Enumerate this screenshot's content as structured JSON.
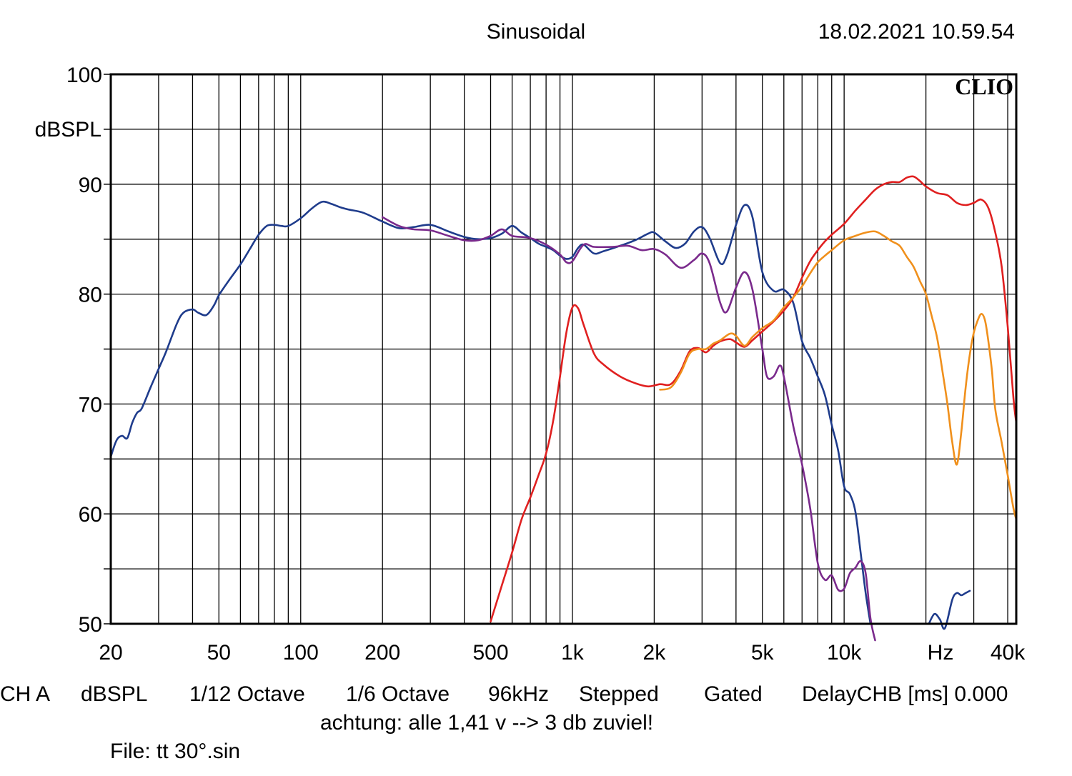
{
  "header": {
    "title": "Sinusoidal",
    "timestamp": "18.02.2021 10.59.54"
  },
  "footer": {
    "channel": "CH A",
    "unit": "dBSPL",
    "smoothing": "1/12 Octave",
    "resolution": "1/6 Octave",
    "sample_rate": "96kHz",
    "mode": "Stepped",
    "window": "Gated",
    "delay": "DelayCHB [ms] 0.000",
    "note": "achtung: alle 1,41 v --> 3 db zuviel!",
    "file": "File: tt 30°.sin"
  },
  "chart_data": {
    "type": "line",
    "brand": "CLIO",
    "ylabel": "dBSPL",
    "x_unit_label": "Hz",
    "x_scale": "log",
    "xlim": [
      20,
      43000
    ],
    "ylim": [
      50,
      100
    ],
    "grid": true,
    "y_ticks": [
      100,
      90,
      80,
      70,
      60,
      50
    ],
    "x_tick_labels": [
      {
        "value": 20,
        "label": "20"
      },
      {
        "value": 50,
        "label": "50"
      },
      {
        "value": 100,
        "label": "100"
      },
      {
        "value": 200,
        "label": "200"
      },
      {
        "value": 500,
        "label": "500"
      },
      {
        "value": 1000,
        "label": "1k"
      },
      {
        "value": 2000,
        "label": "2k"
      },
      {
        "value": 5000,
        "label": "5k"
      },
      {
        "value": 10000,
        "label": "10k"
      },
      {
        "value": 40000,
        "label": "40k"
      }
    ],
    "series": [
      {
        "color": "#1f3c8c",
        "points": [
          [
            20,
            65.2
          ],
          [
            21,
            66.7
          ],
          [
            22,
            67.1
          ],
          [
            23,
            66.9
          ],
          [
            24,
            68.3
          ],
          [
            25,
            69.2
          ],
          [
            26,
            69.6
          ],
          [
            28,
            71.5
          ],
          [
            30,
            73.2
          ],
          [
            32,
            74.8
          ],
          [
            35,
            77.3
          ],
          [
            37,
            78.3
          ],
          [
            40,
            78.6
          ],
          [
            42,
            78.3
          ],
          [
            45,
            78.1
          ],
          [
            48,
            79.0
          ],
          [
            50,
            79.9
          ],
          [
            55,
            81.4
          ],
          [
            60,
            82.7
          ],
          [
            65,
            84.1
          ],
          [
            70,
            85.4
          ],
          [
            75,
            86.2
          ],
          [
            80,
            86.3
          ],
          [
            85,
            86.2
          ],
          [
            90,
            86.2
          ],
          [
            100,
            86.9
          ],
          [
            110,
            87.8
          ],
          [
            120,
            88.4
          ],
          [
            130,
            88.2
          ],
          [
            140,
            87.9
          ],
          [
            150,
            87.7
          ],
          [
            170,
            87.4
          ],
          [
            200,
            86.6
          ],
          [
            230,
            86.0
          ],
          [
            260,
            86.1
          ],
          [
            300,
            86.3
          ],
          [
            350,
            85.7
          ],
          [
            400,
            85.2
          ],
          [
            450,
            85.0
          ],
          [
            500,
            85.1
          ],
          [
            550,
            85.5
          ],
          [
            600,
            86.2
          ],
          [
            650,
            85.6
          ],
          [
            700,
            85.1
          ],
          [
            750,
            84.6
          ],
          [
            800,
            84.3
          ],
          [
            850,
            84.0
          ],
          [
            900,
            83.5
          ],
          [
            950,
            83.2
          ],
          [
            1000,
            83.4
          ],
          [
            1050,
            84.2
          ],
          [
            1100,
            84.5
          ],
          [
            1200,
            83.7
          ],
          [
            1300,
            83.9
          ],
          [
            1500,
            84.4
          ],
          [
            1700,
            84.9
          ],
          [
            1900,
            85.5
          ],
          [
            2000,
            85.6
          ],
          [
            2200,
            84.8
          ],
          [
            2400,
            84.2
          ],
          [
            2600,
            84.6
          ],
          [
            2800,
            85.7
          ],
          [
            3000,
            86.1
          ],
          [
            3200,
            85.1
          ],
          [
            3500,
            82.8
          ],
          [
            3700,
            83.5
          ],
          [
            4000,
            86.3
          ],
          [
            4300,
            88.1
          ],
          [
            4600,
            87.0
          ],
          [
            5000,
            82.0
          ],
          [
            5500,
            80.3
          ],
          [
            6000,
            80.4
          ],
          [
            6500,
            79.2
          ],
          [
            7000,
            75.7
          ],
          [
            7500,
            74.2
          ],
          [
            8000,
            72.5
          ],
          [
            8500,
            70.8
          ],
          [
            9000,
            68.1
          ],
          [
            9500,
            65.8
          ],
          [
            10000,
            62.5
          ],
          [
            10500,
            61.8
          ],
          [
            11000,
            60.2
          ],
          [
            11500,
            56.5
          ],
          [
            12000,
            52.8
          ],
          [
            12500,
            50.0
          ]
        ]
      },
      {
        "color": "#1f3c8c",
        "points": [
          [
            20500,
            50.0
          ],
          [
            21500,
            50.9
          ],
          [
            22500,
            50.4
          ],
          [
            23500,
            49.6
          ],
          [
            25000,
            52.2
          ],
          [
            26000,
            52.8
          ],
          [
            27000,
            52.6
          ],
          [
            28000,
            52.8
          ],
          [
            29000,
            53.0
          ]
        ]
      },
      {
        "color": "#7a2a8c",
        "points": [
          [
            200,
            87.0
          ],
          [
            230,
            86.2
          ],
          [
            260,
            85.9
          ],
          [
            300,
            85.8
          ],
          [
            350,
            85.3
          ],
          [
            400,
            84.9
          ],
          [
            450,
            84.9
          ],
          [
            500,
            85.3
          ],
          [
            550,
            85.9
          ],
          [
            600,
            85.3
          ],
          [
            700,
            85.1
          ],
          [
            800,
            84.5
          ],
          [
            900,
            83.6
          ],
          [
            950,
            82.9
          ],
          [
            1000,
            83.0
          ],
          [
            1100,
            84.5
          ],
          [
            1200,
            84.3
          ],
          [
            1400,
            84.3
          ],
          [
            1600,
            84.4
          ],
          [
            1800,
            84.0
          ],
          [
            2000,
            84.1
          ],
          [
            2200,
            83.6
          ],
          [
            2500,
            82.4
          ],
          [
            2800,
            83.1
          ],
          [
            3000,
            83.7
          ],
          [
            3200,
            82.8
          ],
          [
            3500,
            79.2
          ],
          [
            3700,
            78.4
          ],
          [
            4000,
            80.6
          ],
          [
            4300,
            82.0
          ],
          [
            4600,
            80.4
          ],
          [
            5000,
            75.0
          ],
          [
            5200,
            72.5
          ],
          [
            5500,
            72.5
          ],
          [
            5800,
            73.5
          ],
          [
            6000,
            72.5
          ],
          [
            6500,
            68.0
          ],
          [
            7000,
            64.5
          ],
          [
            7500,
            60.5
          ],
          [
            8000,
            55.5
          ],
          [
            8500,
            54.0
          ],
          [
            9000,
            54.4
          ],
          [
            9500,
            53.1
          ],
          [
            10000,
            53.2
          ],
          [
            10500,
            54.6
          ],
          [
            11000,
            55.1
          ],
          [
            11500,
            55.7
          ],
          [
            12000,
            54.6
          ],
          [
            12500,
            50.5
          ],
          [
            13000,
            48.5
          ]
        ]
      },
      {
        "color": "#e02020",
        "points": [
          [
            500,
            50.2
          ],
          [
            550,
            53.5
          ],
          [
            600,
            56.5
          ],
          [
            650,
            59.5
          ],
          [
            700,
            61.5
          ],
          [
            750,
            63.5
          ],
          [
            800,
            65.5
          ],
          [
            850,
            68.5
          ],
          [
            900,
            72.5
          ],
          [
            950,
            76.5
          ],
          [
            1000,
            78.8
          ],
          [
            1050,
            78.7
          ],
          [
            1100,
            77.2
          ],
          [
            1200,
            74.6
          ],
          [
            1300,
            73.6
          ],
          [
            1500,
            72.5
          ],
          [
            1700,
            71.9
          ],
          [
            1900,
            71.6
          ],
          [
            2100,
            71.8
          ],
          [
            2300,
            71.8
          ],
          [
            2500,
            73.0
          ],
          [
            2700,
            74.8
          ],
          [
            2900,
            75.1
          ],
          [
            3100,
            74.7
          ],
          [
            3300,
            75.3
          ],
          [
            3500,
            75.7
          ],
          [
            3800,
            75.9
          ],
          [
            4000,
            75.6
          ],
          [
            4300,
            75.2
          ],
          [
            4600,
            75.8
          ],
          [
            5000,
            76.6
          ],
          [
            5500,
            77.5
          ],
          [
            6000,
            78.5
          ],
          [
            6500,
            79.7
          ],
          [
            7000,
            81.5
          ],
          [
            7500,
            83.0
          ],
          [
            8000,
            84.0
          ],
          [
            8500,
            84.8
          ],
          [
            9000,
            85.4
          ],
          [
            10000,
            86.4
          ],
          [
            11000,
            87.6
          ],
          [
            12000,
            88.6
          ],
          [
            13000,
            89.5
          ],
          [
            14000,
            90.0
          ],
          [
            15000,
            90.2
          ],
          [
            16000,
            90.2
          ],
          [
            17000,
            90.6
          ],
          [
            18000,
            90.7
          ],
          [
            19000,
            90.3
          ],
          [
            20000,
            89.8
          ],
          [
            22000,
            89.2
          ],
          [
            24000,
            89.0
          ],
          [
            26000,
            88.3
          ],
          [
            28000,
            88.1
          ],
          [
            30000,
            88.3
          ],
          [
            32000,
            88.6
          ],
          [
            34000,
            87.8
          ],
          [
            36000,
            85.6
          ],
          [
            38000,
            82.5
          ],
          [
            40000,
            77.0
          ],
          [
            42000,
            70.5
          ],
          [
            43000,
            68.3
          ]
        ]
      },
      {
        "color": "#f0901c",
        "points": [
          [
            2100,
            71.3
          ],
          [
            2300,
            71.5
          ],
          [
            2500,
            72.8
          ],
          [
            2700,
            74.6
          ],
          [
            2900,
            75.0
          ],
          [
            3100,
            75.0
          ],
          [
            3300,
            75.5
          ],
          [
            3500,
            75.8
          ],
          [
            3800,
            76.4
          ],
          [
            4000,
            76.2
          ],
          [
            4300,
            75.3
          ],
          [
            4600,
            76.1
          ],
          [
            5000,
            76.9
          ],
          [
            5500,
            77.6
          ],
          [
            6000,
            78.8
          ],
          [
            6500,
            79.7
          ],
          [
            7000,
            80.7
          ],
          [
            7500,
            81.9
          ],
          [
            8000,
            82.9
          ],
          [
            8500,
            83.5
          ],
          [
            9000,
            84.0
          ],
          [
            10000,
            84.9
          ],
          [
            11000,
            85.3
          ],
          [
            12000,
            85.6
          ],
          [
            13000,
            85.7
          ],
          [
            14000,
            85.3
          ],
          [
            15000,
            84.8
          ],
          [
            16000,
            84.4
          ],
          [
            17000,
            83.4
          ],
          [
            18000,
            82.5
          ],
          [
            19000,
            81.2
          ],
          [
            20000,
            80.0
          ],
          [
            21000,
            78.0
          ],
          [
            22000,
            76.0
          ],
          [
            23000,
            73.0
          ],
          [
            24000,
            70.0
          ],
          [
            25000,
            66.5
          ],
          [
            26000,
            64.5
          ],
          [
            27000,
            67.5
          ],
          [
            28000,
            71.5
          ],
          [
            29000,
            74.5
          ],
          [
            30000,
            76.5
          ],
          [
            31000,
            77.6
          ],
          [
            32000,
            78.2
          ],
          [
            33000,
            77.6
          ],
          [
            34000,
            75.6
          ],
          [
            35000,
            73.0
          ],
          [
            36000,
            69.5
          ],
          [
            38000,
            66.5
          ],
          [
            40000,
            63.5
          ],
          [
            42000,
            60.5
          ],
          [
            43000,
            59.5
          ]
        ]
      }
    ]
  }
}
